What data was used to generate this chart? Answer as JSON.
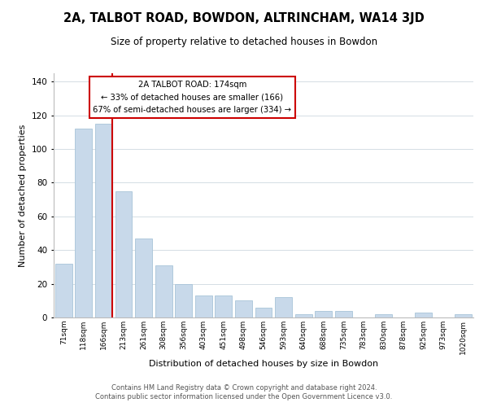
{
  "title": "2A, TALBOT ROAD, BOWDON, ALTRINCHAM, WA14 3JD",
  "subtitle": "Size of property relative to detached houses in Bowdon",
  "xlabel": "Distribution of detached houses by size in Bowdon",
  "ylabel": "Number of detached properties",
  "bar_color": "#c8d9ea",
  "bar_edge_color": "#a8c4d8",
  "vline_color": "#cc0000",
  "categories": [
    "71sqm",
    "118sqm",
    "166sqm",
    "213sqm",
    "261sqm",
    "308sqm",
    "356sqm",
    "403sqm",
    "451sqm",
    "498sqm",
    "546sqm",
    "593sqm",
    "640sqm",
    "688sqm",
    "735sqm",
    "783sqm",
    "830sqm",
    "878sqm",
    "925sqm",
    "973sqm",
    "1020sqm"
  ],
  "values": [
    32,
    112,
    115,
    75,
    47,
    31,
    20,
    13,
    13,
    10,
    6,
    12,
    2,
    4,
    4,
    0,
    2,
    0,
    3,
    0,
    2
  ],
  "ylim": [
    0,
    145
  ],
  "yticks": [
    0,
    20,
    40,
    60,
    80,
    100,
    120,
    140
  ],
  "annotation_line1": "2A TALBOT ROAD: 174sqm",
  "annotation_line2": "← 33% of detached houses are smaller (166)",
  "annotation_line3": "67% of semi-detached houses are larger (334) →",
  "footer1": "Contains HM Land Registry data © Crown copyright and database right 2024.",
  "footer2": "Contains public sector information licensed under the Open Government Licence v3.0.",
  "background_color": "#ffffff",
  "grid_color": "#d4dde4"
}
